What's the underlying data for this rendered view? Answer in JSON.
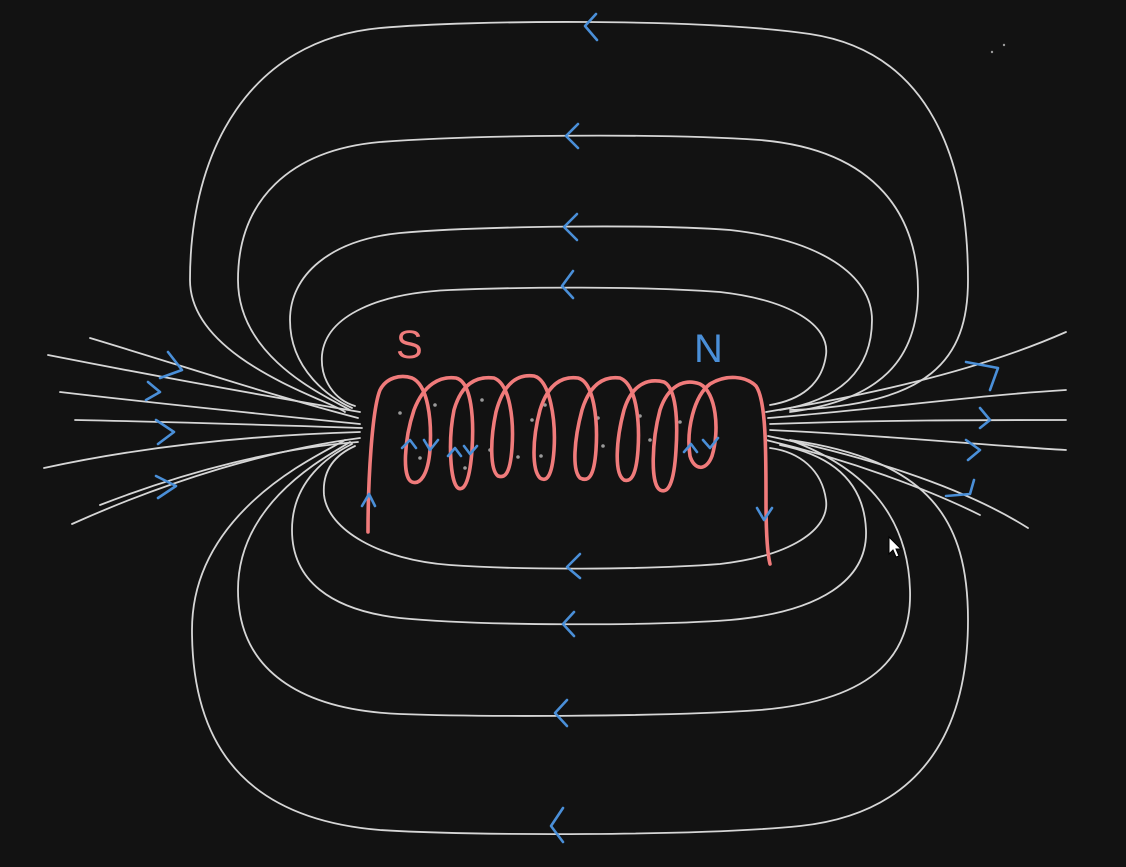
{
  "diagram": {
    "pole_labels": {
      "south": "S",
      "north": "N"
    },
    "colors": {
      "background": "#121212",
      "field_lines": "#d6d6d6",
      "arrows": "#4a8fd8",
      "coil": "#f07b7b",
      "south_label": "#f07b7b",
      "north_label": "#4a8fd8"
    },
    "icons": [
      "mouse-pointer-icon"
    ]
  }
}
